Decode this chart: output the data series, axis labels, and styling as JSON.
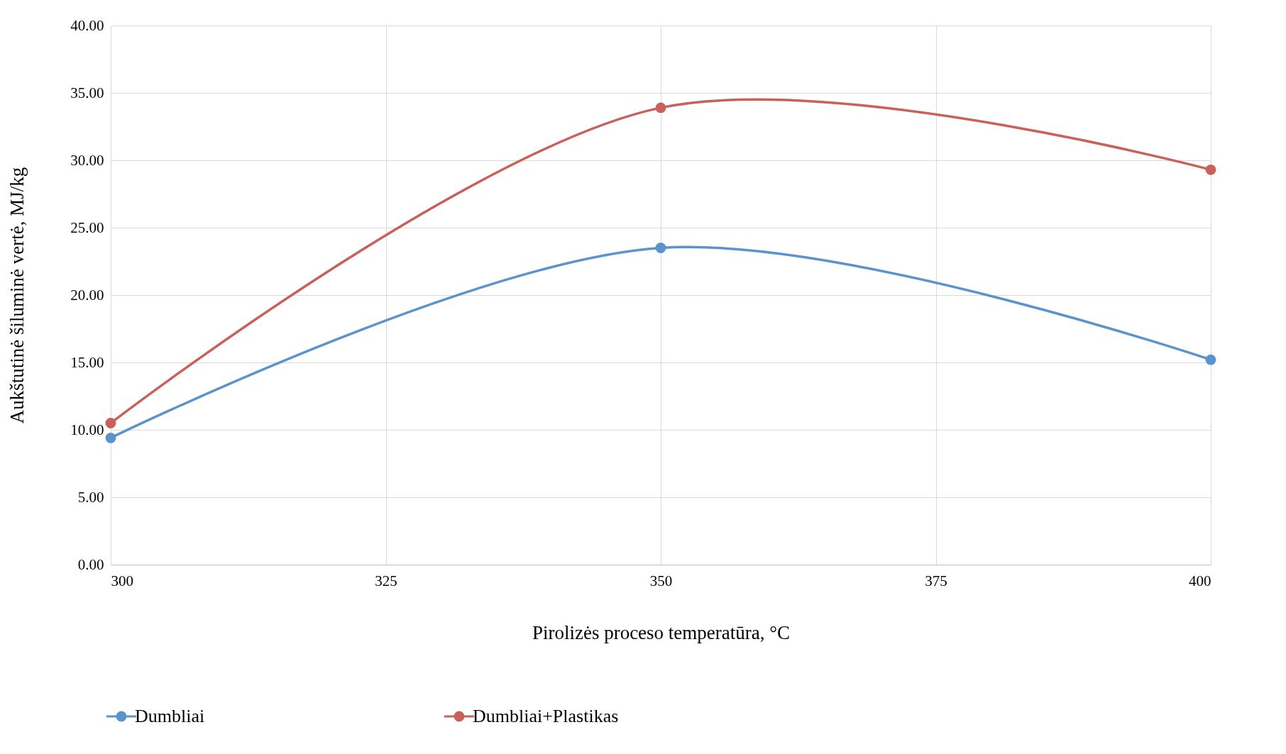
{
  "chart_data": {
    "type": "line",
    "xlabel": "Pirolizės proceso temperatūra, °C",
    "ylabel": "Aukštutinė šiluminė vertė, MJ/kg",
    "x": [
      300,
      350,
      400
    ],
    "series": [
      {
        "name": "Dumbliai",
        "color": "#5b93cc",
        "values": [
          9.4,
          23.5,
          15.2
        ]
      },
      {
        "name": "Dumbliai+Plastikas",
        "color": "#c9605a",
        "values": [
          10.5,
          33.9,
          29.3
        ]
      }
    ],
    "xlim": [
      300,
      400
    ],
    "xticks": [
      300,
      325,
      350,
      375,
      400
    ],
    "ylim": [
      0,
      40
    ],
    "yticks": [
      {
        "value": 0,
        "label": "0.00"
      },
      {
        "value": 5,
        "label": "5.00"
      },
      {
        "value": 10,
        "label": "10.00"
      },
      {
        "value": 15,
        "label": "15.00"
      },
      {
        "value": 20,
        "label": "20.00"
      },
      {
        "value": 25,
        "label": "25.00"
      },
      {
        "value": 30,
        "label": "30.00"
      },
      {
        "value": 35,
        "label": "35.00"
      },
      {
        "value": 40,
        "label": "40.00"
      }
    ],
    "grid": true,
    "legend": "bottom",
    "marker": "circle",
    "line_style": "solid"
  }
}
